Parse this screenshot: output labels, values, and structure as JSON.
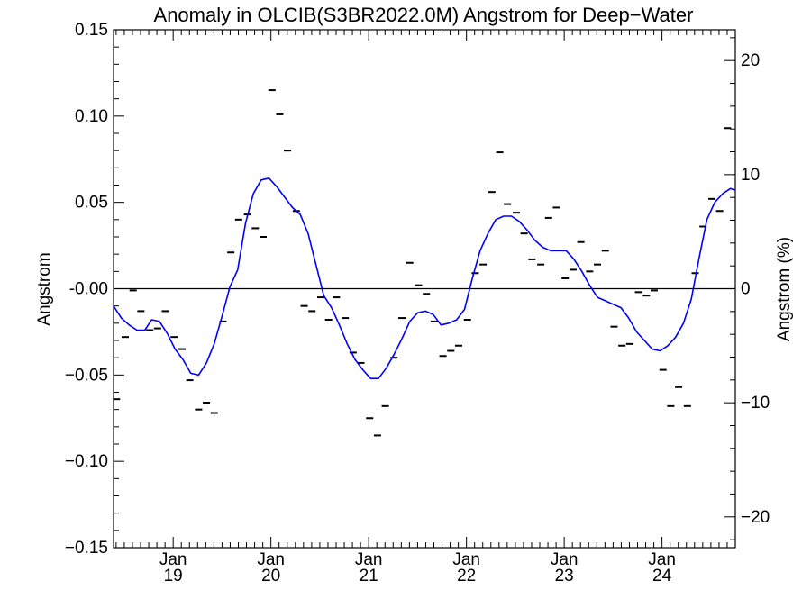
{
  "chart_data": {
    "type": "line",
    "title": "Anomaly in OLCIB(S3BR2022.0M) Angstrom for Deep−Water",
    "ylabel": "Angstrom",
    "y2label": "Angstrom (%)",
    "xlabel": "",
    "xlim": [
      2018.39,
      2024.75
    ],
    "ylim": [
      -0.15,
      0.15
    ],
    "y2lim": [
      -22.7,
      22.7
    ],
    "grid": false,
    "legend": "none",
    "zero_line": true,
    "x_major_ticks": [
      {
        "x": 2019.0,
        "line1": "Jan",
        "line2": "19"
      },
      {
        "x": 2020.0,
        "line1": "Jan",
        "line2": "20"
      },
      {
        "x": 2021.0,
        "line1": "Jan",
        "line2": "21"
      },
      {
        "x": 2022.0,
        "line1": "Jan",
        "line2": "22"
      },
      {
        "x": 2023.0,
        "line1": "Jan",
        "line2": "23"
      },
      {
        "x": 2024.0,
        "line1": "Jan",
        "line2": "24"
      }
    ],
    "y_ticks": [
      {
        "v": 0.15,
        "label": "0.15"
      },
      {
        "v": 0.1,
        "label": "0.10"
      },
      {
        "v": 0.05,
        "label": "0.05"
      },
      {
        "v": 0.0,
        "label": "-0.00"
      },
      {
        "v": -0.05,
        "label": "−0.05"
      },
      {
        "v": -0.1,
        "label": "−0.10"
      },
      {
        "v": -0.15,
        "label": "−0.15"
      }
    ],
    "y2_ticks": [
      {
        "v": 20,
        "label": "20"
      },
      {
        "v": 10,
        "label": "10"
      },
      {
        "v": 0,
        "label": "0"
      },
      {
        "v": -10,
        "label": "−10"
      },
      {
        "v": -20,
        "label": "−20"
      }
    ],
    "series": [
      {
        "kind": "monthly_points",
        "color": "#000000",
        "points": [
          [
            2018.42,
            -0.064
          ],
          [
            2018.51,
            -0.028
          ],
          [
            2018.59,
            -0.001
          ],
          [
            2018.67,
            -0.013
          ],
          [
            2018.76,
            -0.024
          ],
          [
            2018.84,
            -0.023
          ],
          [
            2018.92,
            -0.013
          ],
          [
            2019.01,
            -0.028
          ],
          [
            2019.09,
            -0.035
          ],
          [
            2019.17,
            -0.053
          ],
          [
            2019.26,
            -0.07
          ],
          [
            2019.34,
            -0.066
          ],
          [
            2019.42,
            -0.072
          ],
          [
            2019.51,
            -0.019
          ],
          [
            2019.59,
            0.021
          ],
          [
            2019.67,
            0.04
          ],
          [
            2019.76,
            0.043
          ],
          [
            2019.84,
            0.035
          ],
          [
            2019.92,
            0.03
          ],
          [
            2020.01,
            0.115
          ],
          [
            2020.09,
            0.101
          ],
          [
            2020.17,
            0.08
          ],
          [
            2020.26,
            0.045
          ],
          [
            2020.34,
            -0.01
          ],
          [
            2020.42,
            -0.013
          ],
          [
            2020.51,
            -0.005
          ],
          [
            2020.59,
            -0.018
          ],
          [
            2020.67,
            -0.005
          ],
          [
            2020.76,
            -0.017
          ],
          [
            2020.84,
            -0.037
          ],
          [
            2020.92,
            -0.043
          ],
          [
            2021.01,
            -0.075
          ],
          [
            2021.09,
            -0.085
          ],
          [
            2021.17,
            -0.068
          ],
          [
            2021.26,
            -0.04
          ],
          [
            2021.34,
            -0.017
          ],
          [
            2021.42,
            0.015
          ],
          [
            2021.51,
            0.002
          ],
          [
            2021.59,
            -0.003
          ],
          [
            2021.67,
            -0.019
          ],
          [
            2021.76,
            -0.039
          ],
          [
            2021.84,
            -0.036
          ],
          [
            2021.92,
            -0.033
          ],
          [
            2022.01,
            -0.018
          ],
          [
            2022.09,
            0.009
          ],
          [
            2022.17,
            0.014
          ],
          [
            2022.26,
            0.056
          ],
          [
            2022.34,
            0.079
          ],
          [
            2022.42,
            0.049
          ],
          [
            2022.51,
            0.044
          ],
          [
            2022.59,
            0.032
          ],
          [
            2022.67,
            0.017
          ],
          [
            2022.76,
            0.014
          ],
          [
            2022.84,
            0.041
          ],
          [
            2022.92,
            0.047
          ],
          [
            2023.01,
            0.006
          ],
          [
            2023.09,
            0.011
          ],
          [
            2023.17,
            0.027
          ],
          [
            2023.26,
            0.01
          ],
          [
            2023.34,
            0.014
          ],
          [
            2023.42,
            0.022
          ],
          [
            2023.51,
            -0.022
          ],
          [
            2023.59,
            -0.033
          ],
          [
            2023.67,
            -0.032
          ],
          [
            2023.76,
            -0.002
          ],
          [
            2023.84,
            -0.004
          ],
          [
            2023.92,
            -0.001
          ],
          [
            2024.01,
            -0.047
          ],
          [
            2024.09,
            -0.068
          ],
          [
            2024.17,
            -0.057
          ],
          [
            2024.26,
            -0.068
          ],
          [
            2024.34,
            0.009
          ],
          [
            2024.42,
            0.036
          ],
          [
            2024.51,
            0.052
          ],
          [
            2024.59,
            0.045
          ],
          [
            2024.67,
            0.093
          ]
        ]
      },
      {
        "kind": "smoothed_line",
        "color": "#0000ff",
        "points": [
          [
            2018.39,
            -0.01
          ],
          [
            2018.47,
            -0.017
          ],
          [
            2018.55,
            -0.021
          ],
          [
            2018.63,
            -0.024
          ],
          [
            2018.71,
            -0.024
          ],
          [
            2018.78,
            -0.018
          ],
          [
            2018.86,
            -0.019
          ],
          [
            2018.94,
            -0.026
          ],
          [
            2019.02,
            -0.035
          ],
          [
            2019.1,
            -0.041
          ],
          [
            2019.18,
            -0.049
          ],
          [
            2019.26,
            -0.05
          ],
          [
            2019.34,
            -0.043
          ],
          [
            2019.42,
            -0.032
          ],
          [
            2019.5,
            -0.016
          ],
          [
            2019.58,
            0.001
          ],
          [
            2019.66,
            0.011
          ],
          [
            2019.74,
            0.038
          ],
          [
            2019.82,
            0.055
          ],
          [
            2019.9,
            0.063
          ],
          [
            2019.98,
            0.064
          ],
          [
            2020.06,
            0.059
          ],
          [
            2020.14,
            0.053
          ],
          [
            2020.22,
            0.047
          ],
          [
            2020.3,
            0.043
          ],
          [
            2020.38,
            0.032
          ],
          [
            2020.46,
            0.014
          ],
          [
            2020.54,
            -0.004
          ],
          [
            2020.62,
            -0.011
          ],
          [
            2020.7,
            -0.021
          ],
          [
            2020.78,
            -0.032
          ],
          [
            2020.86,
            -0.041
          ],
          [
            2020.94,
            -0.047
          ],
          [
            2021.02,
            -0.052
          ],
          [
            2021.1,
            -0.052
          ],
          [
            2021.18,
            -0.046
          ],
          [
            2021.26,
            -0.038
          ],
          [
            2021.34,
            -0.029
          ],
          [
            2021.42,
            -0.019
          ],
          [
            2021.5,
            -0.014
          ],
          [
            2021.58,
            -0.013
          ],
          [
            2021.66,
            -0.015
          ],
          [
            2021.74,
            -0.021
          ],
          [
            2021.82,
            -0.02
          ],
          [
            2021.9,
            -0.018
          ],
          [
            2021.98,
            -0.012
          ],
          [
            2022.06,
            0.006
          ],
          [
            2022.14,
            0.022
          ],
          [
            2022.22,
            0.032
          ],
          [
            2022.3,
            0.04
          ],
          [
            2022.38,
            0.042
          ],
          [
            2022.46,
            0.042
          ],
          [
            2022.54,
            0.039
          ],
          [
            2022.62,
            0.034
          ],
          [
            2022.7,
            0.028
          ],
          [
            2022.78,
            0.024
          ],
          [
            2022.86,
            0.022
          ],
          [
            2022.94,
            0.022
          ],
          [
            2023.02,
            0.022
          ],
          [
            2023.1,
            0.017
          ],
          [
            2023.18,
            0.01
          ],
          [
            2023.26,
            0.002
          ],
          [
            2023.34,
            -0.005
          ],
          [
            2023.42,
            -0.007
          ],
          [
            2023.5,
            -0.009
          ],
          [
            2023.58,
            -0.011
          ],
          [
            2023.66,
            -0.017
          ],
          [
            2023.74,
            -0.025
          ],
          [
            2023.82,
            -0.03
          ],
          [
            2023.9,
            -0.035
          ],
          [
            2023.98,
            -0.036
          ],
          [
            2024.06,
            -0.033
          ],
          [
            2024.14,
            -0.028
          ],
          [
            2024.22,
            -0.02
          ],
          [
            2024.3,
            -0.006
          ],
          [
            2024.38,
            0.018
          ],
          [
            2024.46,
            0.04
          ],
          [
            2024.54,
            0.05
          ],
          [
            2024.62,
            0.055
          ],
          [
            2024.7,
            0.058
          ],
          [
            2024.75,
            0.057
          ]
        ]
      }
    ]
  }
}
